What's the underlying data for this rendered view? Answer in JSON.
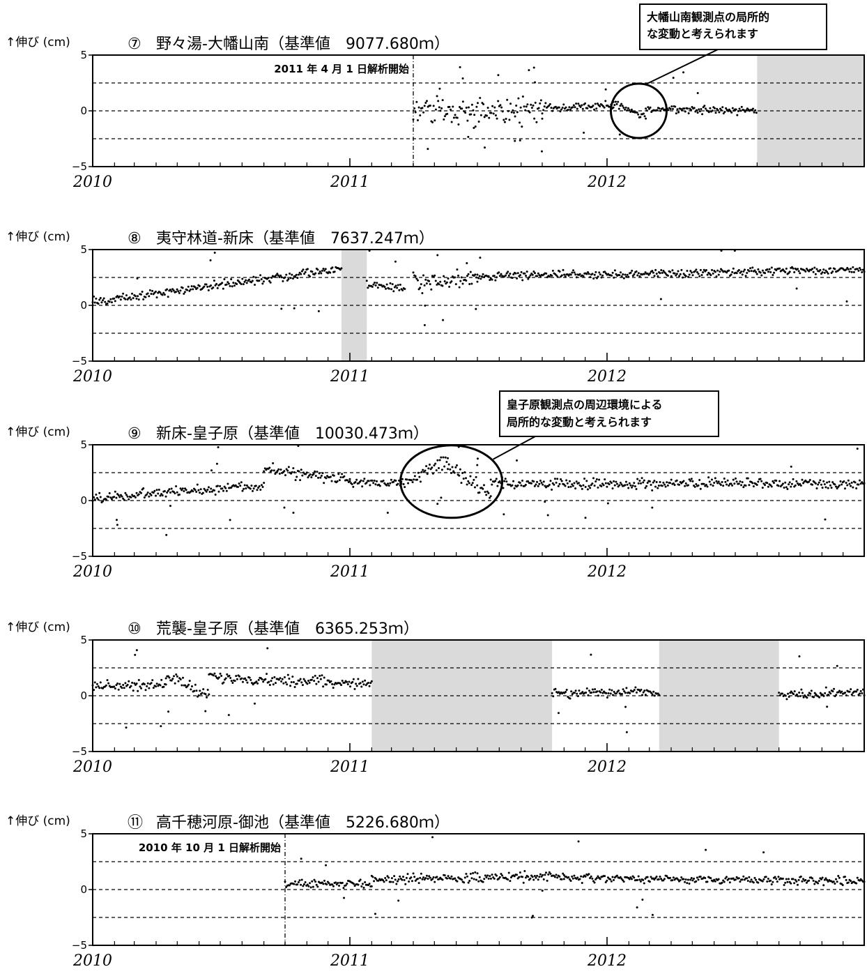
{
  "chart_data": [
    {
      "type": "scatter",
      "ylabel": "↑伸び (cm)",
      "title_no": "⑦",
      "title": "野々湯-大幡山南（基準値　9077.680ｍ）",
      "yticks": [
        "5",
        "0",
        "−5"
      ],
      "ylim": [
        -5,
        5
      ],
      "grid": "dashed horizontal lines at −2.5, 0, +2.5",
      "xticks": [
        "2010",
        "2011",
        "2012"
      ],
      "xlim": [
        "2010-01-01",
        "2012-12-31"
      ],
      "start_note": "2011 年 4 月 1 日解析開始",
      "start_date": "2011-04-01",
      "shaded_periods": [
        [
          "2012-08-01",
          "2012-12-31"
        ]
      ],
      "series": [
        {
          "segments": [
            {
              "from": "2011-04-01",
              "to": "2011-10-01",
              "start": 0.0,
              "end": 0.0,
              "noise": 1.1,
              "outliers": 14
            },
            {
              "from": "2011-10-01",
              "to": "2012-01-10",
              "start": 0.2,
              "end": 0.5,
              "noise": 0.35,
              "outliers": 2
            },
            {
              "from": "2012-01-10",
              "to": "2012-02-05",
              "start": 0.6,
              "end": 0.0,
              "noise": 0.3,
              "outliers": 1
            },
            {
              "from": "2012-02-05",
              "to": "2012-02-25",
              "start": 0.0,
              "end": -0.7,
              "noise": 0.3,
              "outliers": 0
            },
            {
              "from": "2012-02-25",
              "to": "2012-07-31",
              "start": 0.2,
              "end": 0.0,
              "noise": 0.3,
              "outliers": 3
            }
          ]
        }
      ],
      "annotation": {
        "text_lines": [
          "大幡山南観測点の局所的",
          "な変動と考えられます"
        ],
        "target_date": "2012-02-15",
        "target_y": 0.0
      }
    },
    {
      "type": "scatter",
      "ylabel": "↑伸び (cm)",
      "title_no": "⑧",
      "title": "夷守林道-新床（基準値　7637.247ｍ）",
      "yticks": [
        "5",
        "0",
        "−5"
      ],
      "ylim": [
        -5,
        5
      ],
      "grid": "dashed horizontal lines at −2.5, 0, +2.5",
      "xticks": [
        "2010",
        "2011",
        "2012"
      ],
      "xlim": [
        "2010-01-01",
        "2012-12-31"
      ],
      "shaded_periods": [
        [
          "2010-12-20",
          "2011-01-25"
        ]
      ],
      "series": [
        {
          "segments": [
            {
              "from": "2010-01-01",
              "to": "2010-12-20",
              "start": 0.3,
              "end": 3.3,
              "noise": 0.35,
              "outliers": 6
            },
            {
              "from": "2011-01-25",
              "to": "2011-03-20",
              "start": 1.8,
              "end": 1.6,
              "noise": 0.3,
              "outliers": 2
            },
            {
              "from": "2011-04-01",
              "to": "2011-07-01",
              "start": 2.0,
              "end": 2.5,
              "noise": 0.75,
              "outliers": 6
            },
            {
              "from": "2011-07-01",
              "to": "2012-12-31",
              "start": 2.6,
              "end": 3.2,
              "noise": 0.3,
              "outliers": 6
            }
          ]
        }
      ]
    },
    {
      "type": "scatter",
      "ylabel": "↑伸び (cm)",
      "title_no": "⑨",
      "title": "新床-皇子原（基準値　10030.473ｍ）",
      "yticks": [
        "5",
        "0",
        "−5"
      ],
      "ylim": [
        -5,
        5
      ],
      "grid": "dashed horizontal lines at −2.5, 0, +2.5",
      "xticks": [
        "2010",
        "2011",
        "2012"
      ],
      "xlim": [
        "2010-01-01",
        "2012-12-31"
      ],
      "shaded_periods": [],
      "series": [
        {
          "segments": [
            {
              "from": "2010-01-01",
              "to": "2010-09-01",
              "start": 0.2,
              "end": 1.4,
              "noise": 0.4,
              "outliers": 8
            },
            {
              "from": "2010-09-01",
              "to": "2011-01-01",
              "start": 2.8,
              "end": 1.8,
              "noise": 0.45,
              "outliers": 3
            },
            {
              "from": "2011-01-01",
              "to": "2011-03-15",
              "start": 1.7,
              "end": 1.6,
              "noise": 0.35,
              "outliers": 1
            },
            {
              "from": "2011-03-15",
              "to": "2011-05-20",
              "start": 1.4,
              "end": 3.6,
              "noise": 0.55,
              "outliers": 2
            },
            {
              "from": "2011-05-20",
              "to": "2011-07-20",
              "start": 3.2,
              "end": 0.4,
              "noise": 0.6,
              "outliers": 3
            },
            {
              "from": "2011-07-20",
              "to": "2012-12-31",
              "start": 1.5,
              "end": 1.5,
              "noise": 0.4,
              "outliers": 10
            }
          ]
        }
      ],
      "annotation": {
        "text_lines": [
          "皇子原観測点の周辺環境による",
          "局所的な変動と考えられます"
        ],
        "target_date": "2011-05-25",
        "target_y": 1.7
      }
    },
    {
      "type": "scatter",
      "ylabel": "↑伸び (cm)",
      "title_no": "⑩",
      "title": "荒襲-皇子原（基準値　6365.253ｍ）",
      "yticks": [
        "5",
        "0",
        "−5"
      ],
      "ylim": [
        -5,
        5
      ],
      "grid": "dashed horizontal lines at −2.5, 0, +2.5",
      "xticks": [
        "2010",
        "2011",
        "2012"
      ],
      "xlim": [
        "2010-01-01",
        "2012-12-31"
      ],
      "shaded_periods": [
        [
          "2011-02-01",
          "2011-10-15"
        ],
        [
          "2012-03-15",
          "2012-09-01"
        ]
      ],
      "series": [
        {
          "segments": [
            {
              "from": "2010-01-01",
              "to": "2010-04-15",
              "start": 0.9,
              "end": 1.0,
              "noise": 0.4,
              "outliers": 4
            },
            {
              "from": "2010-04-15",
              "to": "2010-06-15",
              "start": 1.9,
              "end": 0.0,
              "noise": 0.45,
              "outliers": 2
            },
            {
              "from": "2010-06-15",
              "to": "2011-02-01",
              "start": 1.6,
              "end": 1.1,
              "noise": 0.4,
              "outliers": 3
            },
            {
              "from": "2011-10-15",
              "to": "2012-03-15",
              "start": 0.2,
              "end": 0.4,
              "noise": 0.35,
              "outliers": 4
            },
            {
              "from": "2012-09-01",
              "to": "2012-12-31",
              "start": 0.0,
              "end": 0.4,
              "noise": 0.35,
              "outliers": 3
            }
          ]
        }
      ]
    },
    {
      "type": "scatter",
      "ylabel": "↑伸び (cm)",
      "title_no": "⑪",
      "title": "高千穂河原-御池（基準値　5226.680ｍ）",
      "yticks": [
        "5",
        "0",
        "−5"
      ],
      "ylim": [
        -5,
        5
      ],
      "grid": "dashed horizontal lines at −2.5, 0, +2.5",
      "xticks": [
        "2010",
        "2011",
        "2012"
      ],
      "xlim": [
        "2010-01-01",
        "2012-12-31"
      ],
      "start_note": "2010 年 10 月 1 日解析開始",
      "start_date": "2010-10-01",
      "shaded_periods": [],
      "series": [
        {
          "segments": [
            {
              "from": "2010-10-01",
              "to": "2011-02-01",
              "start": 0.5,
              "end": 0.5,
              "noise": 0.3,
              "outliers": 3
            },
            {
              "from": "2011-02-01",
              "to": "2011-11-01",
              "start": 0.9,
              "end": 1.2,
              "noise": 0.35,
              "outliers": 6
            },
            {
              "from": "2011-11-01",
              "to": "2012-12-31",
              "start": 1.0,
              "end": 0.8,
              "noise": 0.3,
              "outliers": 6
            }
          ]
        }
      ]
    }
  ]
}
